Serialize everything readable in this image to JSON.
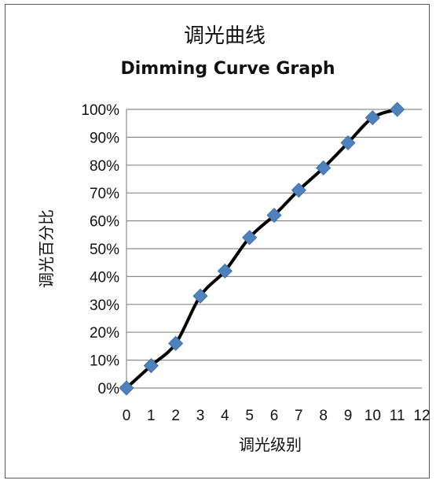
{
  "chart_data": {
    "type": "line",
    "title": "调光曲线",
    "subtitle": "Dimming Curve Graph",
    "xlabel": "调光级别",
    "ylabel": "调光百分比",
    "x": [
      0,
      1,
      2,
      3,
      4,
      5,
      6,
      7,
      8,
      9,
      10,
      11
    ],
    "series": [
      {
        "values": [
          0,
          8,
          16,
          33,
          42,
          54,
          62,
          71,
          79,
          88,
          97,
          100
        ]
      }
    ],
    "xlim": [
      0,
      12
    ],
    "ylim": [
      0,
      100
    ],
    "x_ticks": [
      "0",
      "1",
      "2",
      "3",
      "4",
      "5",
      "6",
      "7",
      "8",
      "9",
      "10",
      "11",
      "12"
    ],
    "y_ticks": [
      "0%",
      "10%",
      "20%",
      "30%",
      "40%",
      "50%",
      "60%",
      "70%",
      "80%",
      "90%",
      "100%"
    ],
    "grid": "horizontal",
    "legend": "none",
    "line_color": "#000000",
    "marker_color": "#4F81BD",
    "gridline_color": "#8c8c8c"
  }
}
